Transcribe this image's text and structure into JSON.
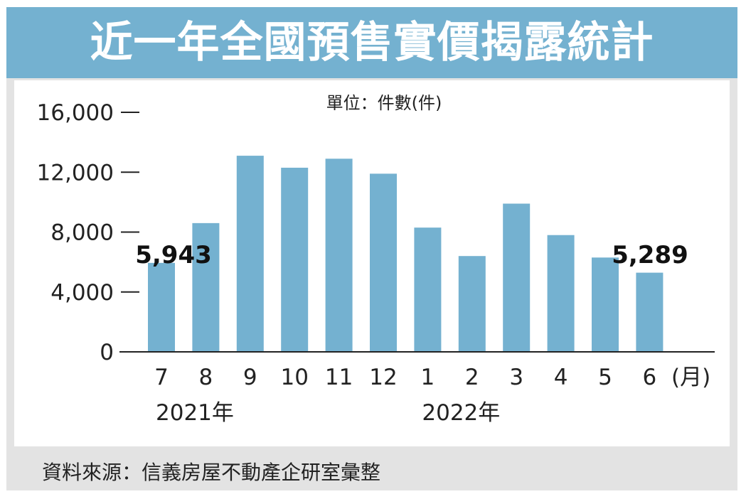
{
  "title": "近一年全國預售實價揭露統計",
  "source_note": "資料來源：信義房屋不動產企研室彙整",
  "chart_data": {
    "type": "bar",
    "title": "近一年全國預售實價揭露統計",
    "unit_label": "單位：件數(件)",
    "categories": [
      "7",
      "8",
      "9",
      "10",
      "11",
      "12",
      "1",
      "2",
      "3",
      "4",
      "5",
      "6"
    ],
    "values": [
      5943,
      8600,
      13100,
      12300,
      12900,
      11900,
      8300,
      6400,
      9900,
      7800,
      6300,
      5289
    ],
    "x_unit": "(月)",
    "year_labels": [
      {
        "label": "2021年",
        "start_index": 0
      },
      {
        "label": "2022年",
        "start_index": 6
      }
    ],
    "y_ticks": [
      {
        "value": 0,
        "label": "0"
      },
      {
        "value": 4000,
        "label": "4,000"
      },
      {
        "value": 8000,
        "label": "8,000"
      },
      {
        "value": 12000,
        "label": "12,000"
      },
      {
        "value": 16000,
        "label": "16,000"
      }
    ],
    "ylim": [
      0,
      16000
    ],
    "annotations": [
      {
        "index": 0,
        "text": "5,943"
      },
      {
        "index": 11,
        "text": "5,289"
      }
    ],
    "bar_color": "#74b1d0",
    "grid": false
  }
}
